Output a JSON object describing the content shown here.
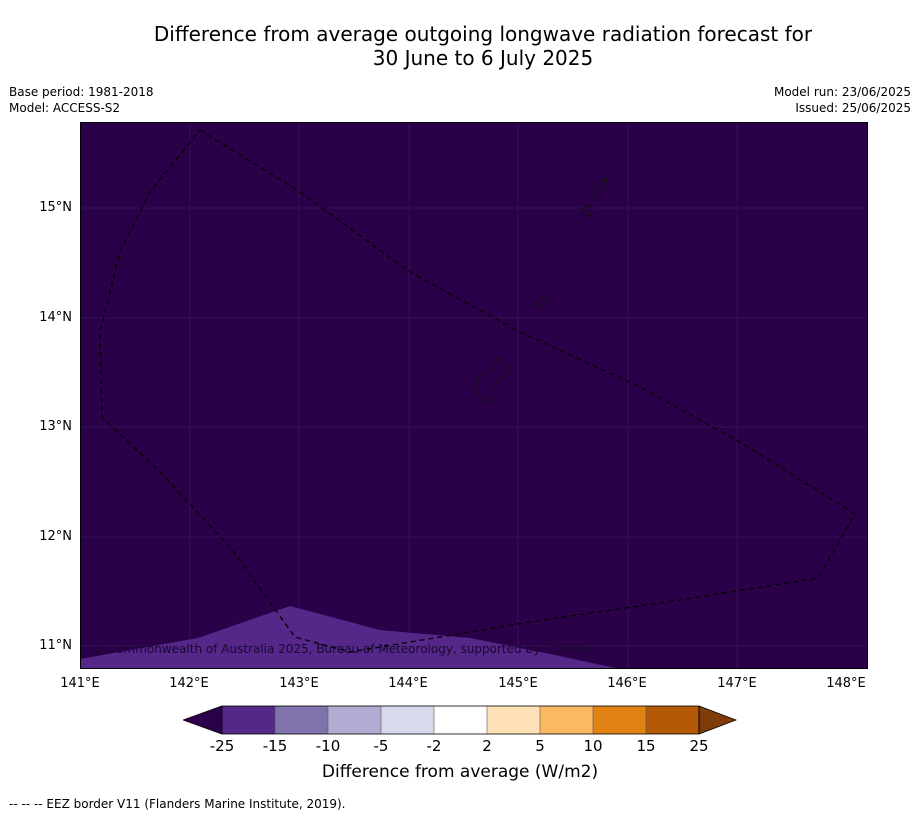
{
  "title_line1": "Difference from average outgoing longwave radiation forecast for",
  "title_line2": "30 June to 6 July 2025",
  "meta": {
    "base_period": "Base period: 1981-2018",
    "model": "Model: ACCESS-S2",
    "model_run": "Model run: 23/06/2025",
    "issued": "Issued: 25/06/2025"
  },
  "map": {
    "copyright": "© Commonwealth of Australia 2025, Bureau of Meteorology, supported by COSPPac",
    "background_color": "#2a0048",
    "lower_band_color": "#542788",
    "lat_labels": [
      "15°N",
      "14°N",
      "13°N",
      "12°N",
      "11°N"
    ],
    "lon_labels": [
      "141°E",
      "142°E",
      "143°E",
      "144°E",
      "145°E",
      "146°E",
      "147°E",
      "148°E"
    ]
  },
  "colorbar": {
    "ticks": [
      "-25",
      "-15",
      "-10",
      "-5",
      "-2",
      "2",
      "5",
      "10",
      "15",
      "25"
    ],
    "colors": [
      "#2d004b",
      "#542788",
      "#8073ac",
      "#b2abd2",
      "#d8daeb",
      "#ffffff",
      "#fee0b6",
      "#fdb863",
      "#e08214",
      "#b35806",
      "#7f3b08"
    ],
    "label": "Difference from average (W/m2)"
  },
  "footnote": "--  --  -- EEZ border V11 (Flanders Marine Institute, 2019)."
}
